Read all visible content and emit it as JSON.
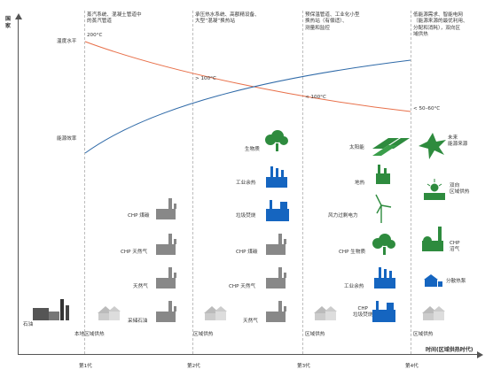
{
  "axes": {
    "y_label": "国家",
    "x_label": "时间(区域供热时代)",
    "temp_level": "温度水平",
    "energy_eff": "能源效率"
  },
  "generations": [
    "第1代",
    "第2代",
    "第3代",
    "第4代"
  ],
  "gen_descriptions": [
    "蒸汽系统、混凝土管道中\n的蒸汽管道",
    "承压热水系统、高额精设备、\n大型“混凝”换热站",
    "预保温管道、工业化小型\n换热站（有偿适）、\n测量和监控",
    "低能源需求、智能电网\n（能源来源的最优利用、\n分配和消耗），双向区\n域供热"
  ],
  "temperatures": [
    "200°C",
    "> 100°C",
    "< 100°C",
    "< 50–60°C"
  ],
  "gen1": {
    "source": "石油",
    "output": "本地区域供热"
  },
  "gen2": {
    "sources": [
      "CHP 煤碳",
      "CHP 天然气",
      "天然气",
      "采储石油"
    ],
    "output": "区域供热"
  },
  "gen3": {
    "sources": [
      "生物质",
      "工业余热",
      "垃圾焚烧",
      "CHP 煤碳",
      "CHP 天然气",
      "天然气"
    ],
    "output": "区域供热"
  },
  "gen4": {
    "sources": [
      "太阳能",
      "地热",
      "风力过剩电力",
      "CHP 生物质",
      "工业余热",
      "CHP\n垃圾焚烧"
    ],
    "outputs": [
      "未来\n能源来源",
      "双向\n区域供热",
      "CHP\n沼气",
      "分散热泵"
    ],
    "output": "区域供热"
  },
  "colors": {
    "temp_curve": "#e8704a",
    "eff_curve": "#2f6aa8",
    "tree": "#2e8b3e",
    "factory": "#1565c0",
    "axis": "#555555"
  },
  "icons": [
    "oil-pump-icon",
    "house-icon",
    "factory-icon",
    "tree-icon",
    "solar-panel-icon",
    "geothermal-icon",
    "wind-turbine-icon",
    "star-burst-icon",
    "sun-icon",
    "heat-pump-icon"
  ]
}
